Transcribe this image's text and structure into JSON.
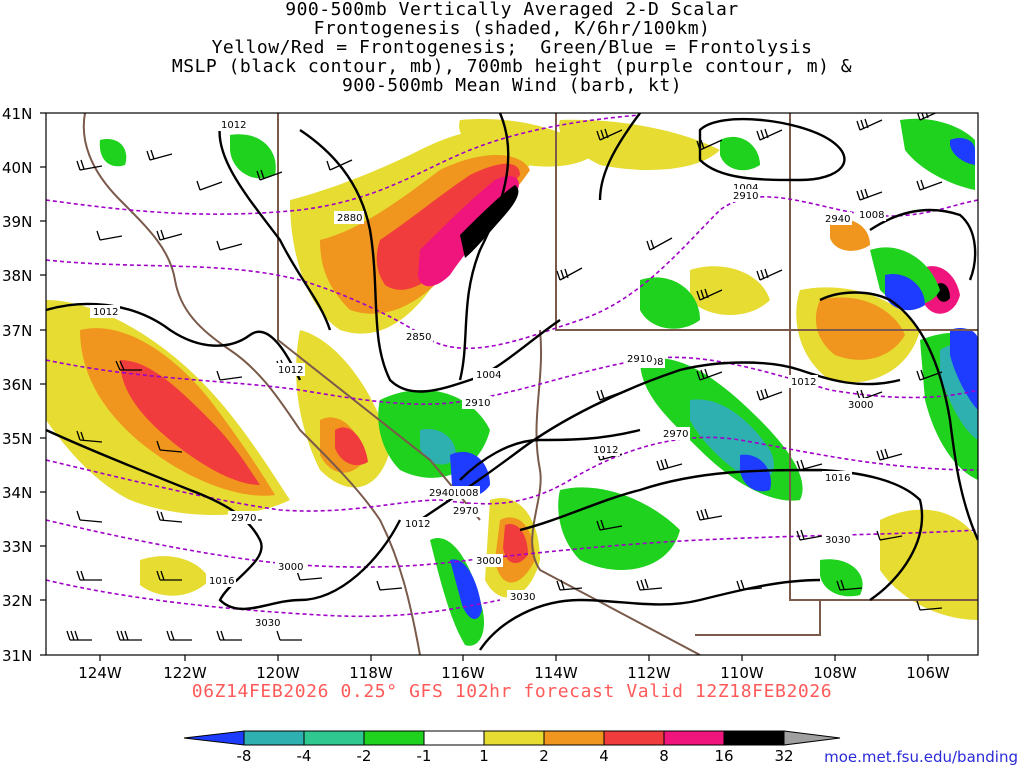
{
  "title_lines": [
    "900-500mb Vertically Averaged 2-D Scalar",
    "Frontogenesis (shaded, K/6hr/100km)",
    "Yellow/Red = Frontogenesis;  Green/Blue = Frontolysis",
    "MSLP (black contour, mb), 700mb height (purple contour, m) &",
    "900-500mb Mean Wind (barb, kt)"
  ],
  "y_axis_labels": [
    "41N",
    "40N",
    "39N",
    "38N",
    "37N",
    "36N",
    "35N",
    "34N",
    "33N",
    "32N",
    "31N"
  ],
  "x_axis_labels": [
    "124W",
    "122W",
    "120W",
    "118W",
    "116W",
    "114W",
    "112W",
    "110W",
    "108W",
    "106W"
  ],
  "contour_labels": {
    "mslp": [
      "1012",
      "1012",
      "1012",
      "1004",
      "1004",
      "1008",
      "1012",
      "1012",
      "1016",
      "1008",
      "1008",
      "1012",
      "1016"
    ],
    "height_700mb": [
      "2880",
      "2850",
      "2910",
      "2910",
      "2970",
      "2940",
      "2910",
      "2970",
      "3000",
      "3030",
      "2970",
      "3000",
      "3030",
      "2940",
      "3000",
      "3030"
    ]
  },
  "footer": "06Z14FEB2026 0.25° GFS 102hr forecast Valid 12Z18FEB2026",
  "colorbar": {
    "labels": [
      "-8",
      "-4",
      "-2",
      "-1",
      "1",
      "2",
      "4",
      "8",
      "16",
      "32"
    ],
    "colors": [
      "#1e3cff",
      "#2fb0b0",
      "#2fc890",
      "#1ed21e",
      "#ffffff",
      "#e6dc32",
      "#f0961e",
      "#f03c3c",
      "#f0147d",
      "#000000",
      "#a0a0a0"
    ]
  },
  "credit": "moe.met.fsu.edu/banding",
  "colors": {
    "mslp": "#000000",
    "height": "#a000c8",
    "border": "#7a5a4a",
    "yellow": "#e6dc32",
    "orange": "#f0961e",
    "red": "#f03c3c",
    "magenta": "#f0147d",
    "green": "#1ed21e",
    "teal": "#2fb0b0",
    "blue": "#1e3cff"
  }
}
